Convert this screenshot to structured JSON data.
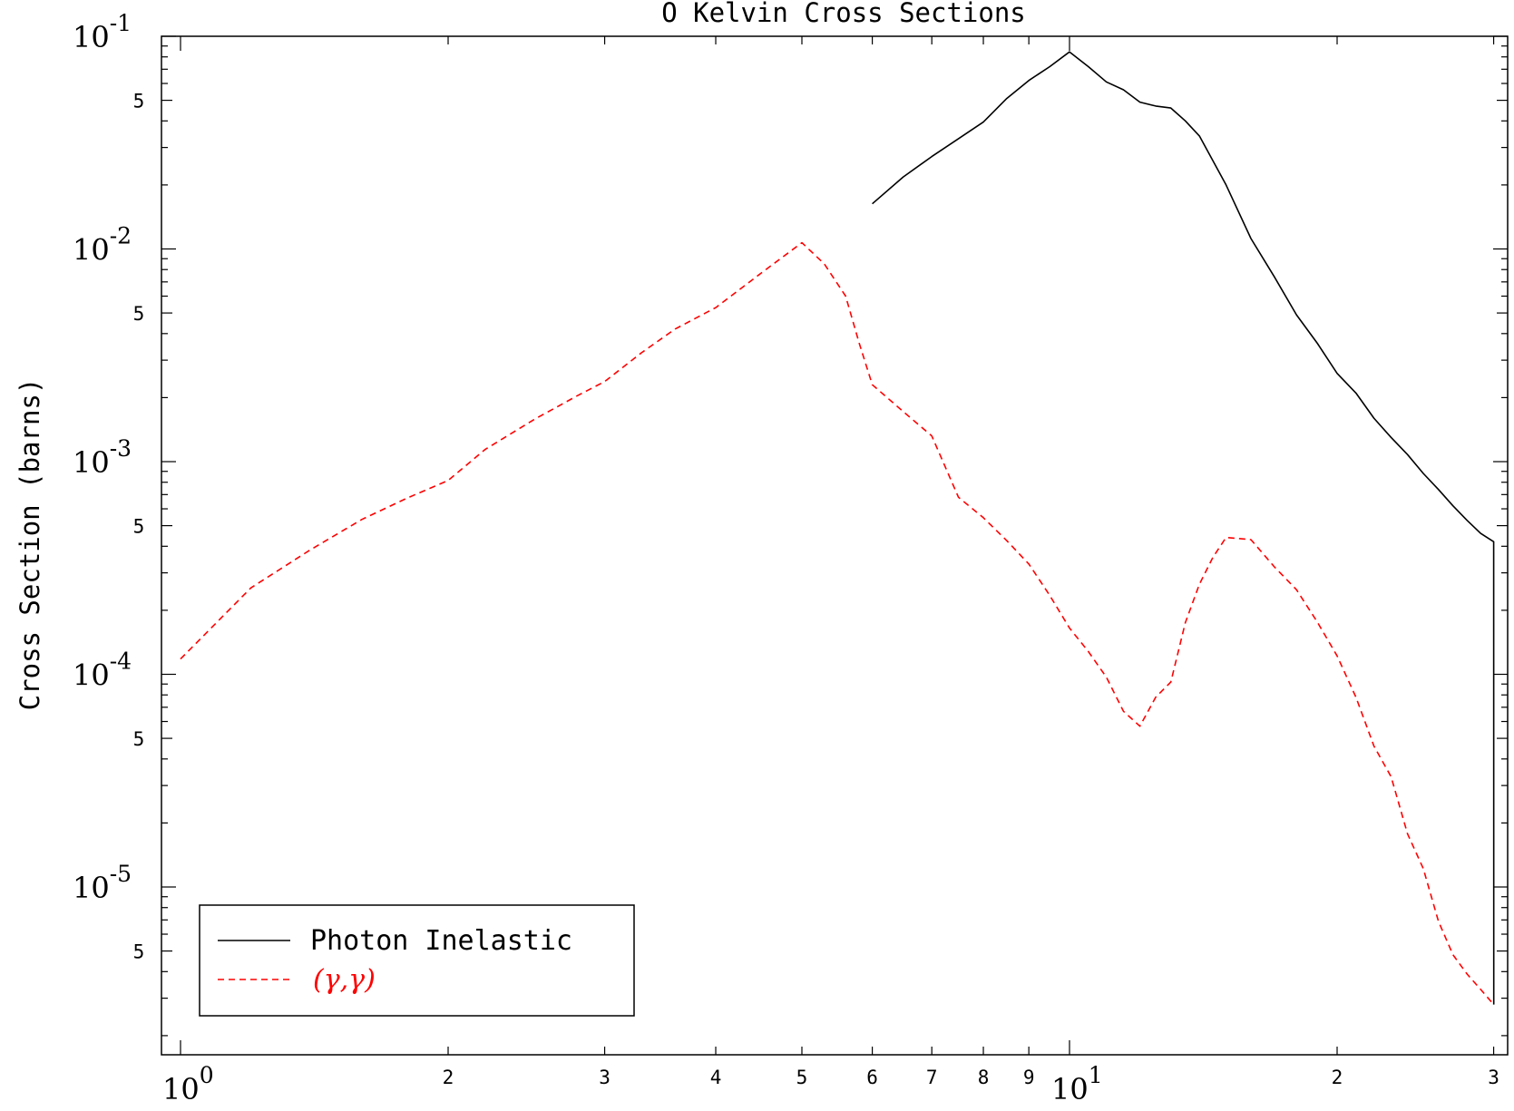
{
  "chart_data": {
    "type": "line",
    "title": "O Kelvin Cross Sections",
    "xlabel": "",
    "ylabel": "Cross Section (barns)",
    "xscale": "log",
    "yscale": "log",
    "xlim": [
      0.98,
      31.5
    ],
    "ylim": [
      2.2e-06,
      0.105
    ],
    "grid": false,
    "legend_position": "bottom-left",
    "x_tick_labels": {
      "majors": [
        {
          "base": "10",
          "exp": "0"
        },
        {
          "base": "10",
          "exp": "1"
        }
      ],
      "minor_before_10": [
        "2",
        "3",
        "4",
        "5",
        "6",
        "7",
        "8",
        "9"
      ],
      "minor_after_10": [
        "2",
        "3"
      ]
    },
    "y_tick_labels": {
      "majors": [
        {
          "base": "10",
          "exp": "-5"
        },
        {
          "base": "10",
          "exp": "-4"
        },
        {
          "base": "10",
          "exp": "-3"
        },
        {
          "base": "10",
          "exp": "-2"
        },
        {
          "base": "10",
          "exp": "-1"
        }
      ],
      "fives": [
        "5",
        "5",
        "5",
        "5",
        "5"
      ]
    },
    "series": [
      {
        "name": "Photon Inelastic",
        "color": "#000000",
        "style": "solid",
        "x": [
          6,
          6.5,
          7,
          7.5,
          8,
          8.5,
          9,
          9.5,
          10,
          10.5,
          11,
          11.5,
          12,
          12.5,
          13,
          13.5,
          14,
          14.5,
          15,
          16,
          17,
          18,
          19,
          20,
          21,
          22,
          23,
          24,
          25,
          26,
          27,
          28,
          29,
          30,
          30.01
        ],
        "y": [
          0.0163,
          0.0218,
          0.0272,
          0.033,
          0.0395,
          0.051,
          0.062,
          0.072,
          0.0845,
          0.072,
          0.061,
          0.056,
          0.049,
          0.047,
          0.046,
          0.04,
          0.034,
          0.026,
          0.02,
          0.0112,
          0.0074,
          0.0049,
          0.0036,
          0.0026,
          0.0021,
          0.0016,
          0.0013,
          0.00108,
          0.00088,
          0.00074,
          0.00062,
          0.00053,
          0.00046,
          0.00042,
          2.8e-06
        ]
      },
      {
        "name": "(γ,γ)",
        "color": "#ff0000",
        "style": "dashed",
        "x": [
          1,
          1.2,
          1.4,
          1.6,
          1.8,
          2,
          2.2,
          2.5,
          2.8,
          3,
          3.3,
          3.6,
          4,
          4.5,
          5,
          5.3,
          5.6,
          5.8,
          6,
          6.5,
          7,
          7.5,
          8,
          8.5,
          9,
          9.5,
          10,
          10.5,
          11,
          11.5,
          12,
          12.5,
          13,
          13.5,
          14,
          14.5,
          15,
          16,
          17,
          18,
          19,
          20,
          21,
          22,
          23,
          24,
          25,
          26,
          27,
          28,
          29,
          30
        ],
        "y": [
          0.000118,
          0.000255,
          0.000385,
          0.000535,
          0.000675,
          0.000815,
          0.00114,
          0.00158,
          0.00205,
          0.00238,
          0.00325,
          0.0042,
          0.0053,
          0.0077,
          0.0107,
          0.0085,
          0.006,
          0.0036,
          0.0023,
          0.00172,
          0.00132,
          0.00068,
          0.000545,
          0.000425,
          0.00033,
          0.000235,
          0.000165,
          0.000128,
          9.7e-05,
          6.7e-05,
          5.7e-05,
          7.8e-05,
          9.2e-05,
          0.000175,
          0.000265,
          0.000355,
          0.00044,
          0.00043,
          0.00032,
          0.00025,
          0.000176,
          0.000122,
          7.8e-05,
          4.6e-05,
          3.3e-05,
          1.78e-05,
          1.22e-05,
          6.9e-06,
          4.8e-06,
          3.9e-06,
          3.3e-06,
          2.8e-06
        ]
      }
    ]
  }
}
